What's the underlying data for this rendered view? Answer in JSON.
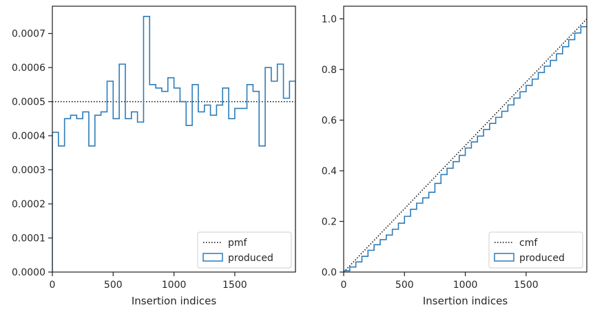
{
  "chart_data": [
    {
      "type": "histogram-step",
      "title": "",
      "xlabel": "Insertion indices",
      "ylabel": "",
      "xlim": [
        0,
        1999
      ],
      "ylim": [
        0,
        0.00078
      ],
      "xticks": [
        0,
        500,
        1000,
        1500
      ],
      "xtick_labels": [
        "0",
        "500",
        "1000",
        "1500"
      ],
      "yticks": [
        0,
        0.0001,
        0.0002,
        0.0003,
        0.0004,
        0.0005,
        0.0006,
        0.0007
      ],
      "ytick_labels": [
        "0.0000",
        "0.0001",
        "0.0002",
        "0.0003",
        "0.0004",
        "0.0005",
        "0.0006",
        "0.0007"
      ],
      "grid": false,
      "legend_position": "lower-right",
      "reference_line": {
        "name": "pmf",
        "y": 0.0005,
        "style": "dotted",
        "color": "#000000"
      },
      "series": [
        {
          "name": "produced",
          "color": "#2b7bb9",
          "bin_edges": [
            0,
            50,
            100,
            150,
            200,
            250,
            300,
            350,
            400,
            450,
            500,
            550,
            600,
            650,
            700,
            750,
            800,
            850,
            900,
            950,
            1000,
            1050,
            1100,
            1150,
            1200,
            1250,
            1300,
            1350,
            1400,
            1450,
            1500,
            1550,
            1600,
            1650,
            1700,
            1750,
            1800,
            1850,
            1900,
            1950,
            2000
          ],
          "values": [
            0.00041,
            0.00037,
            0.00045,
            0.00046,
            0.00045,
            0.00047,
            0.00037,
            0.00046,
            0.00047,
            0.00056,
            0.00045,
            0.00061,
            0.00045,
            0.00047,
            0.00044,
            0.00075,
            0.00055,
            0.00054,
            0.00053,
            0.00057,
            0.00054,
            0.0005,
            0.00043,
            0.00055,
            0.00047,
            0.00049,
            0.00046,
            0.00049,
            0.00054,
            0.00045,
            0.00048,
            0.00048,
            0.00055,
            0.00053,
            0.00037,
            0.0006,
            0.00056,
            0.00061,
            0.00051,
            0.00056
          ]
        }
      ],
      "legend": [
        {
          "label": "pmf",
          "kind": "line"
        },
        {
          "label": "produced",
          "kind": "patch"
        }
      ]
    },
    {
      "type": "step-line",
      "title": "",
      "xlabel": "Insertion indices",
      "ylabel": "",
      "xlim": [
        0,
        1999
      ],
      "ylim": [
        0,
        1.05
      ],
      "xticks": [
        0,
        500,
        1000,
        1500
      ],
      "xtick_labels": [
        "0",
        "500",
        "1000",
        "1500"
      ],
      "yticks": [
        0,
        0.2,
        0.4,
        0.6,
        0.8,
        1.0
      ],
      "ytick_labels": [
        "0.0",
        "0.2",
        "0.4",
        "0.6",
        "0.8",
        "1.0"
      ],
      "grid": false,
      "legend_position": "lower-right",
      "reference_line": {
        "name": "cmf",
        "from": [
          0,
          0
        ],
        "to": [
          1999,
          1.0
        ],
        "style": "dotted",
        "color": "#000000"
      },
      "series": [
        {
          "name": "produced",
          "color": "#2b7bb9",
          "x": [
            0,
            50,
            100,
            150,
            200,
            250,
            300,
            350,
            400,
            450,
            500,
            550,
            600,
            650,
            700,
            750,
            800,
            850,
            900,
            950,
            1000,
            1050,
            1100,
            1150,
            1200,
            1250,
            1300,
            1350,
            1400,
            1450,
            1500,
            1550,
            1600,
            1650,
            1700,
            1750,
            1800,
            1850,
            1900,
            1950,
            2000
          ],
          "y": [
            0.005,
            0.02,
            0.04,
            0.062,
            0.086,
            0.108,
            0.128,
            0.146,
            0.169,
            0.193,
            0.22,
            0.248,
            0.272,
            0.293,
            0.315,
            0.35,
            0.385,
            0.41,
            0.436,
            0.461,
            0.49,
            0.514,
            0.537,
            0.563,
            0.587,
            0.611,
            0.635,
            0.66,
            0.687,
            0.712,
            0.737,
            0.762,
            0.788,
            0.813,
            0.836,
            0.862,
            0.89,
            0.918,
            0.944,
            0.969,
            1.0
          ]
        }
      ],
      "legend": [
        {
          "label": "cmf",
          "kind": "line"
        },
        {
          "label": "produced",
          "kind": "patch"
        }
      ]
    }
  ]
}
